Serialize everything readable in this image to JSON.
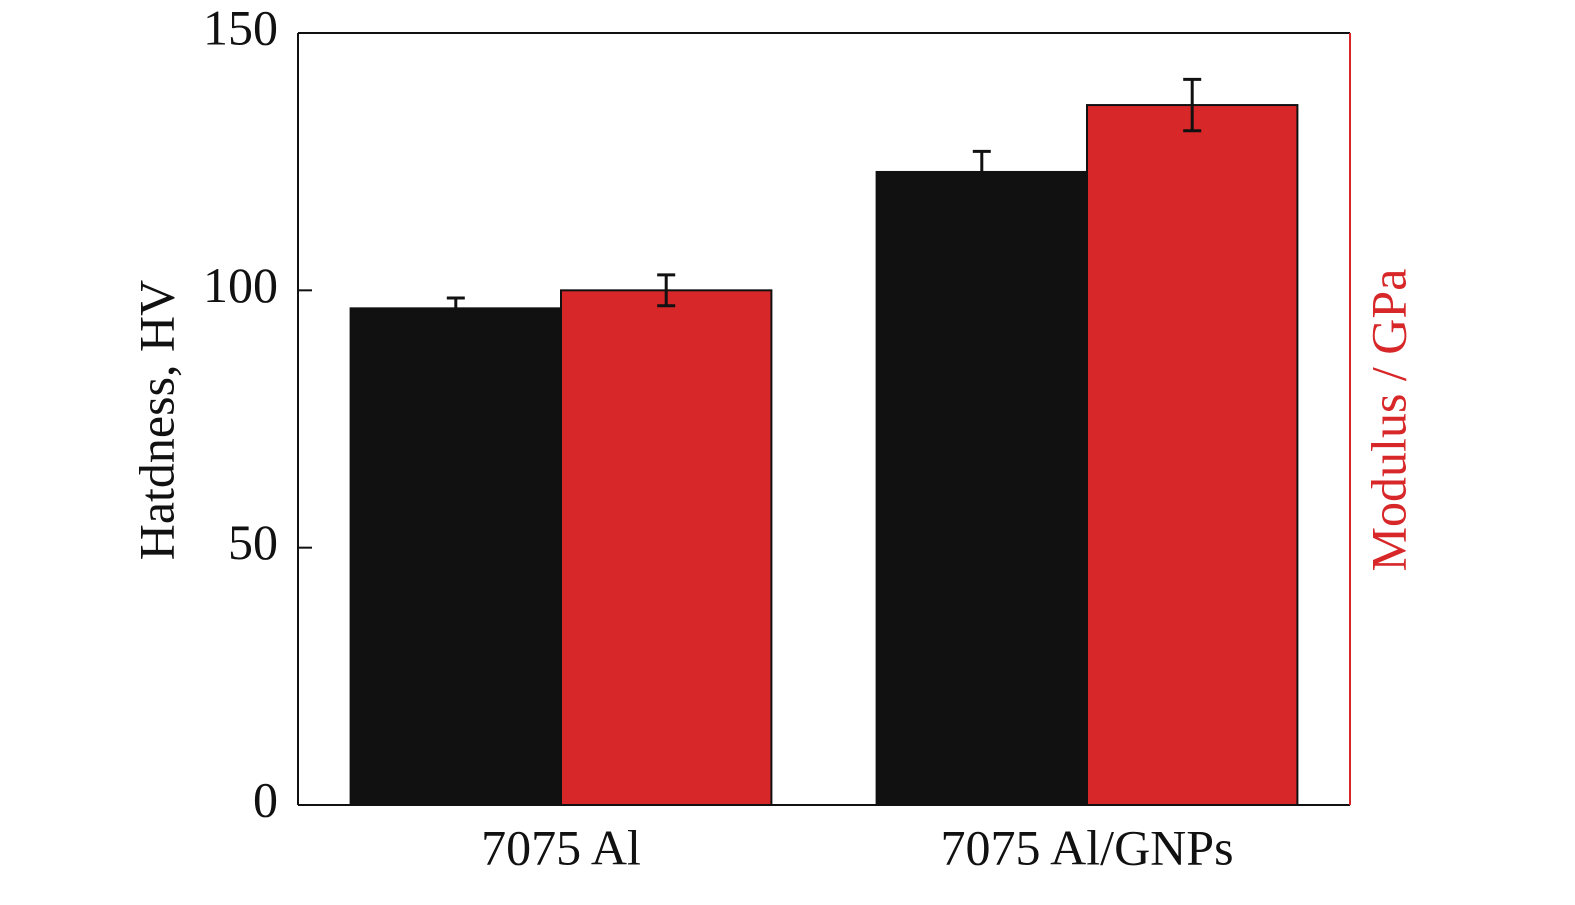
{
  "chart_data": {
    "type": "bar",
    "y_label": "Hatdness, HV",
    "y2_label": "Modulus  / GPa",
    "y2_color": "#d72729",
    "categories": [
      "7075 Al",
      "7075 Al/GNPs"
    ],
    "series": [
      {
        "color": "#111111",
        "values": [
          96.5,
          123
        ],
        "errors": [
          2,
          4
        ]
      },
      {
        "color": "#d72729",
        "values": [
          100,
          136
        ],
        "errors": [
          3,
          5
        ]
      }
    ],
    "ylim": [
      0,
      150
    ],
    "yticks": [
      0,
      50,
      100,
      150
    ]
  }
}
